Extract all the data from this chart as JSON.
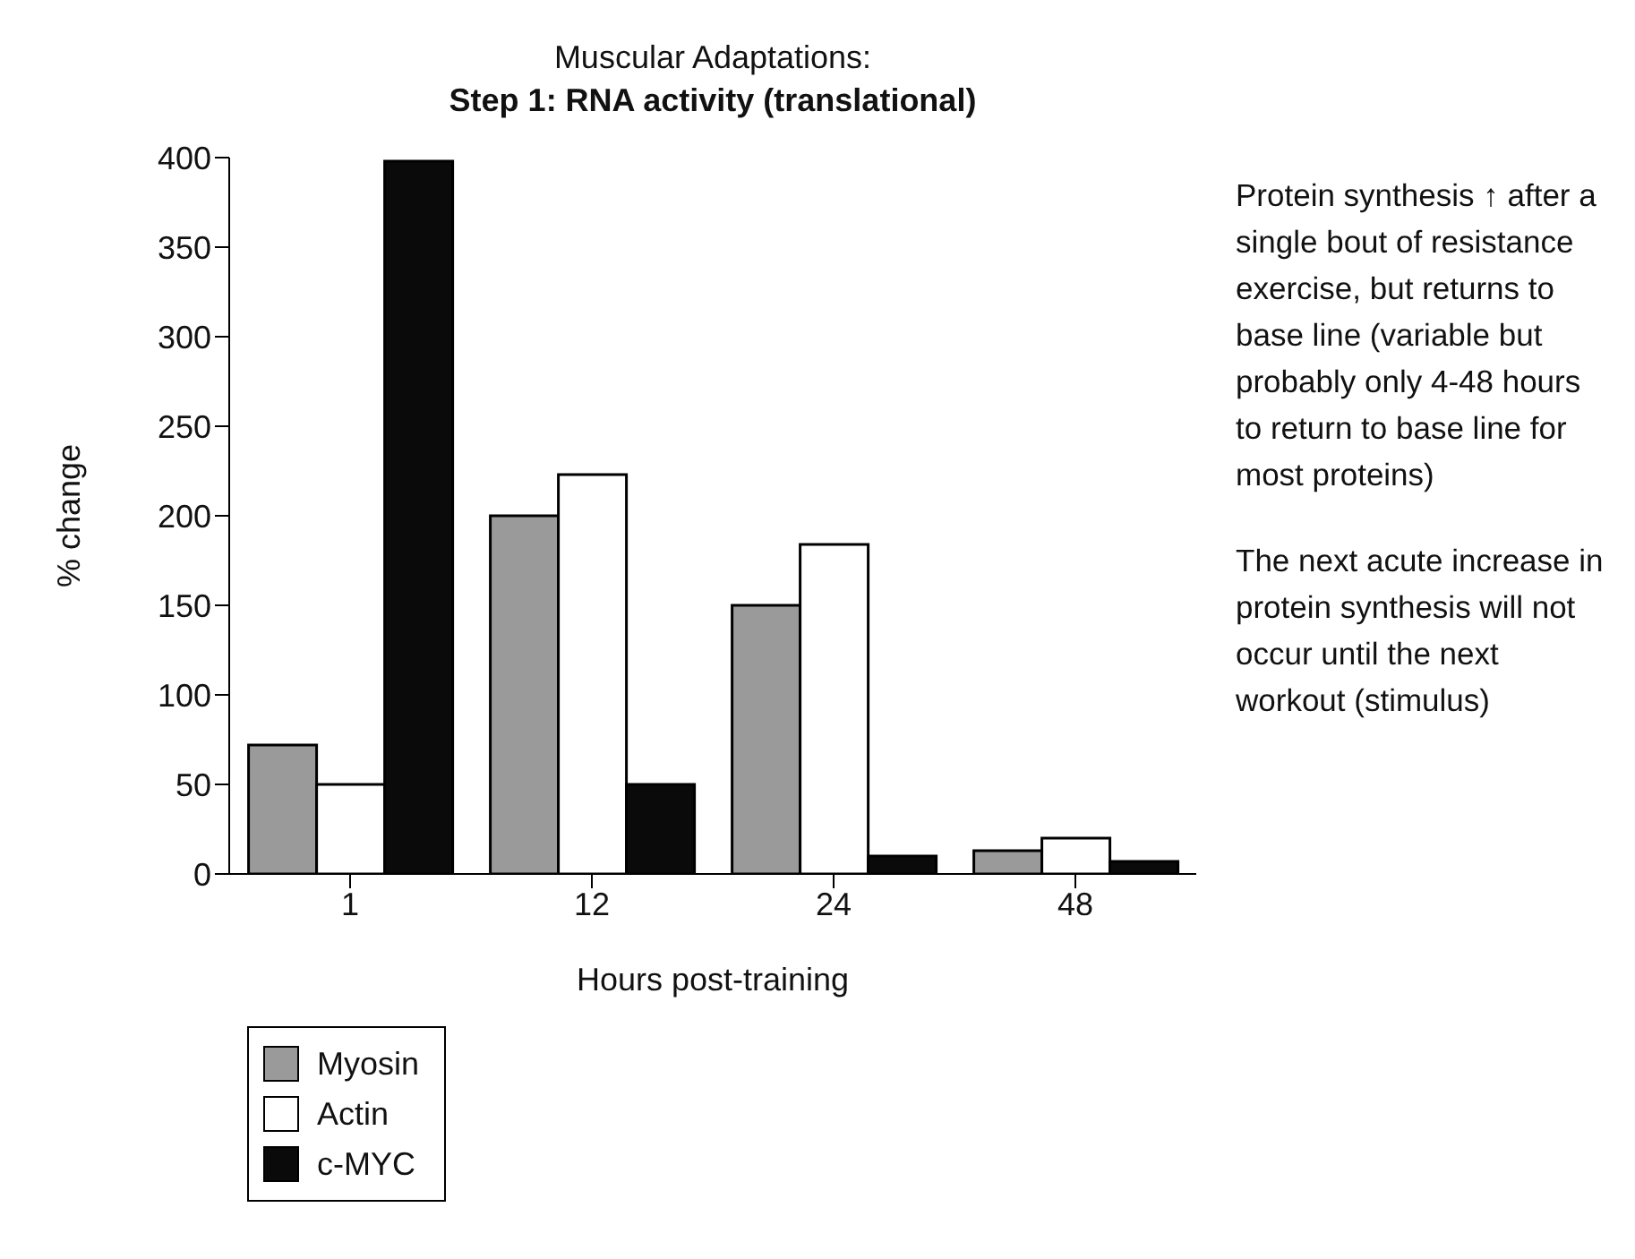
{
  "chart_data": {
    "type": "bar",
    "title": "Muscular Adaptations:",
    "subtitle": "Step 1: RNA activity (translational)",
    "xlabel": "Hours post-training",
    "ylabel": "% change",
    "categories": [
      "1",
      "12",
      "24",
      "48"
    ],
    "series": [
      {
        "name": "Myosin",
        "color": "#9a9a9a",
        "values": [
          72,
          200,
          150,
          13
        ]
      },
      {
        "name": "Actin",
        "color": "#ffffff",
        "values": [
          50,
          223,
          184,
          20
        ]
      },
      {
        "name": "c-MYC",
        "color": "#0a0a0a",
        "values": [
          398,
          50,
          10,
          7
        ]
      }
    ],
    "ylim": [
      0,
      400
    ],
    "yticks": [
      0,
      50,
      100,
      150,
      200,
      250,
      300,
      350,
      400
    ],
    "legend": "bottom left",
    "grid": false,
    "annotations": [
      "Protein synthesis ↑ after a single bout of resistance exercise, but returns to base line (variable but probably only 4-48 hours to return to base line for most proteins)",
      "The next acute increase in protein synthesis will not occur until the next workout (stimulus)"
    ]
  }
}
